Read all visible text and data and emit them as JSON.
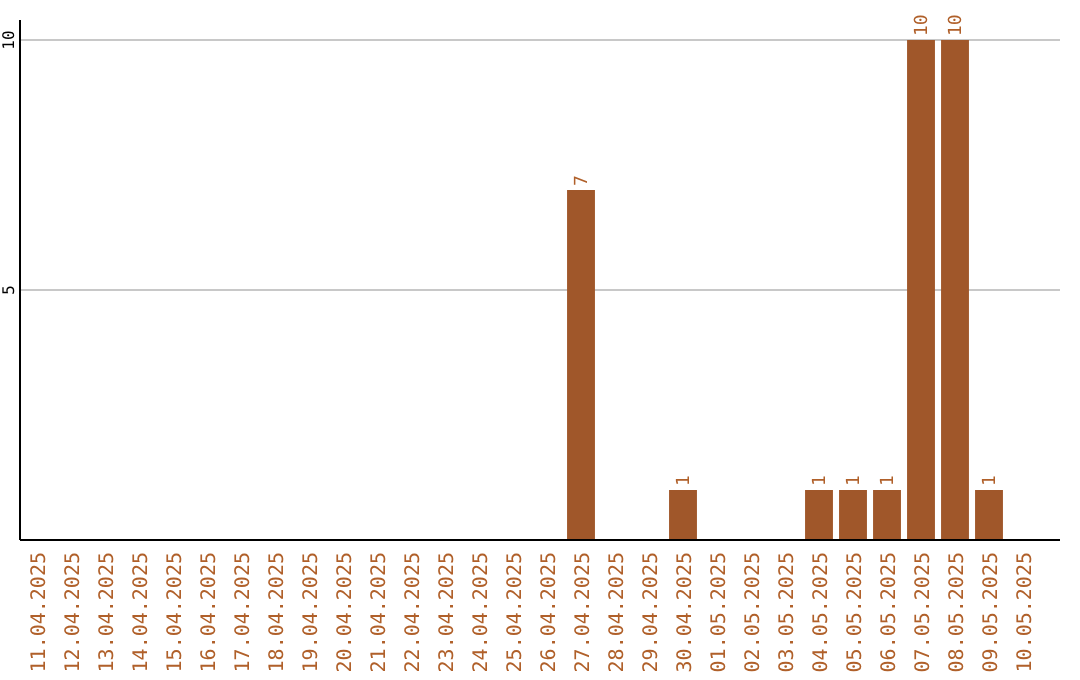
{
  "chart_data": {
    "type": "bar",
    "categories": [
      "11.04.2025",
      "12.04.2025",
      "13.04.2025",
      "14.04.2025",
      "15.04.2025",
      "16.04.2025",
      "17.04.2025",
      "18.04.2025",
      "19.04.2025",
      "20.04.2025",
      "21.04.2025",
      "22.04.2025",
      "23.04.2025",
      "24.04.2025",
      "25.04.2025",
      "26.04.2025",
      "27.04.2025",
      "28.04.2025",
      "29.04.2025",
      "30.04.2025",
      "01.05.2025",
      "02.05.2025",
      "03.05.2025",
      "04.05.2025",
      "05.05.2025",
      "06.05.2025",
      "07.05.2025",
      "08.05.2025",
      "09.05.2025",
      "10.05.2025"
    ],
    "values": [
      0,
      0,
      0,
      0,
      0,
      0,
      0,
      0,
      0,
      0,
      0,
      0,
      0,
      0,
      0,
      0,
      7,
      0,
      0,
      1,
      0,
      0,
      0,
      1,
      1,
      1,
      10,
      10,
      1,
      0
    ],
    "value_labels": [
      null,
      null,
      null,
      null,
      null,
      null,
      null,
      null,
      null,
      null,
      null,
      null,
      null,
      null,
      null,
      null,
      "7",
      null,
      null,
      "1",
      null,
      null,
      null,
      "1",
      "1",
      "1",
      "10",
      "10",
      "1",
      null
    ],
    "color": "#a0572a",
    "ylim": [
      0,
      10
    ],
    "yticks": [
      5,
      10
    ],
    "grid": "y"
  }
}
